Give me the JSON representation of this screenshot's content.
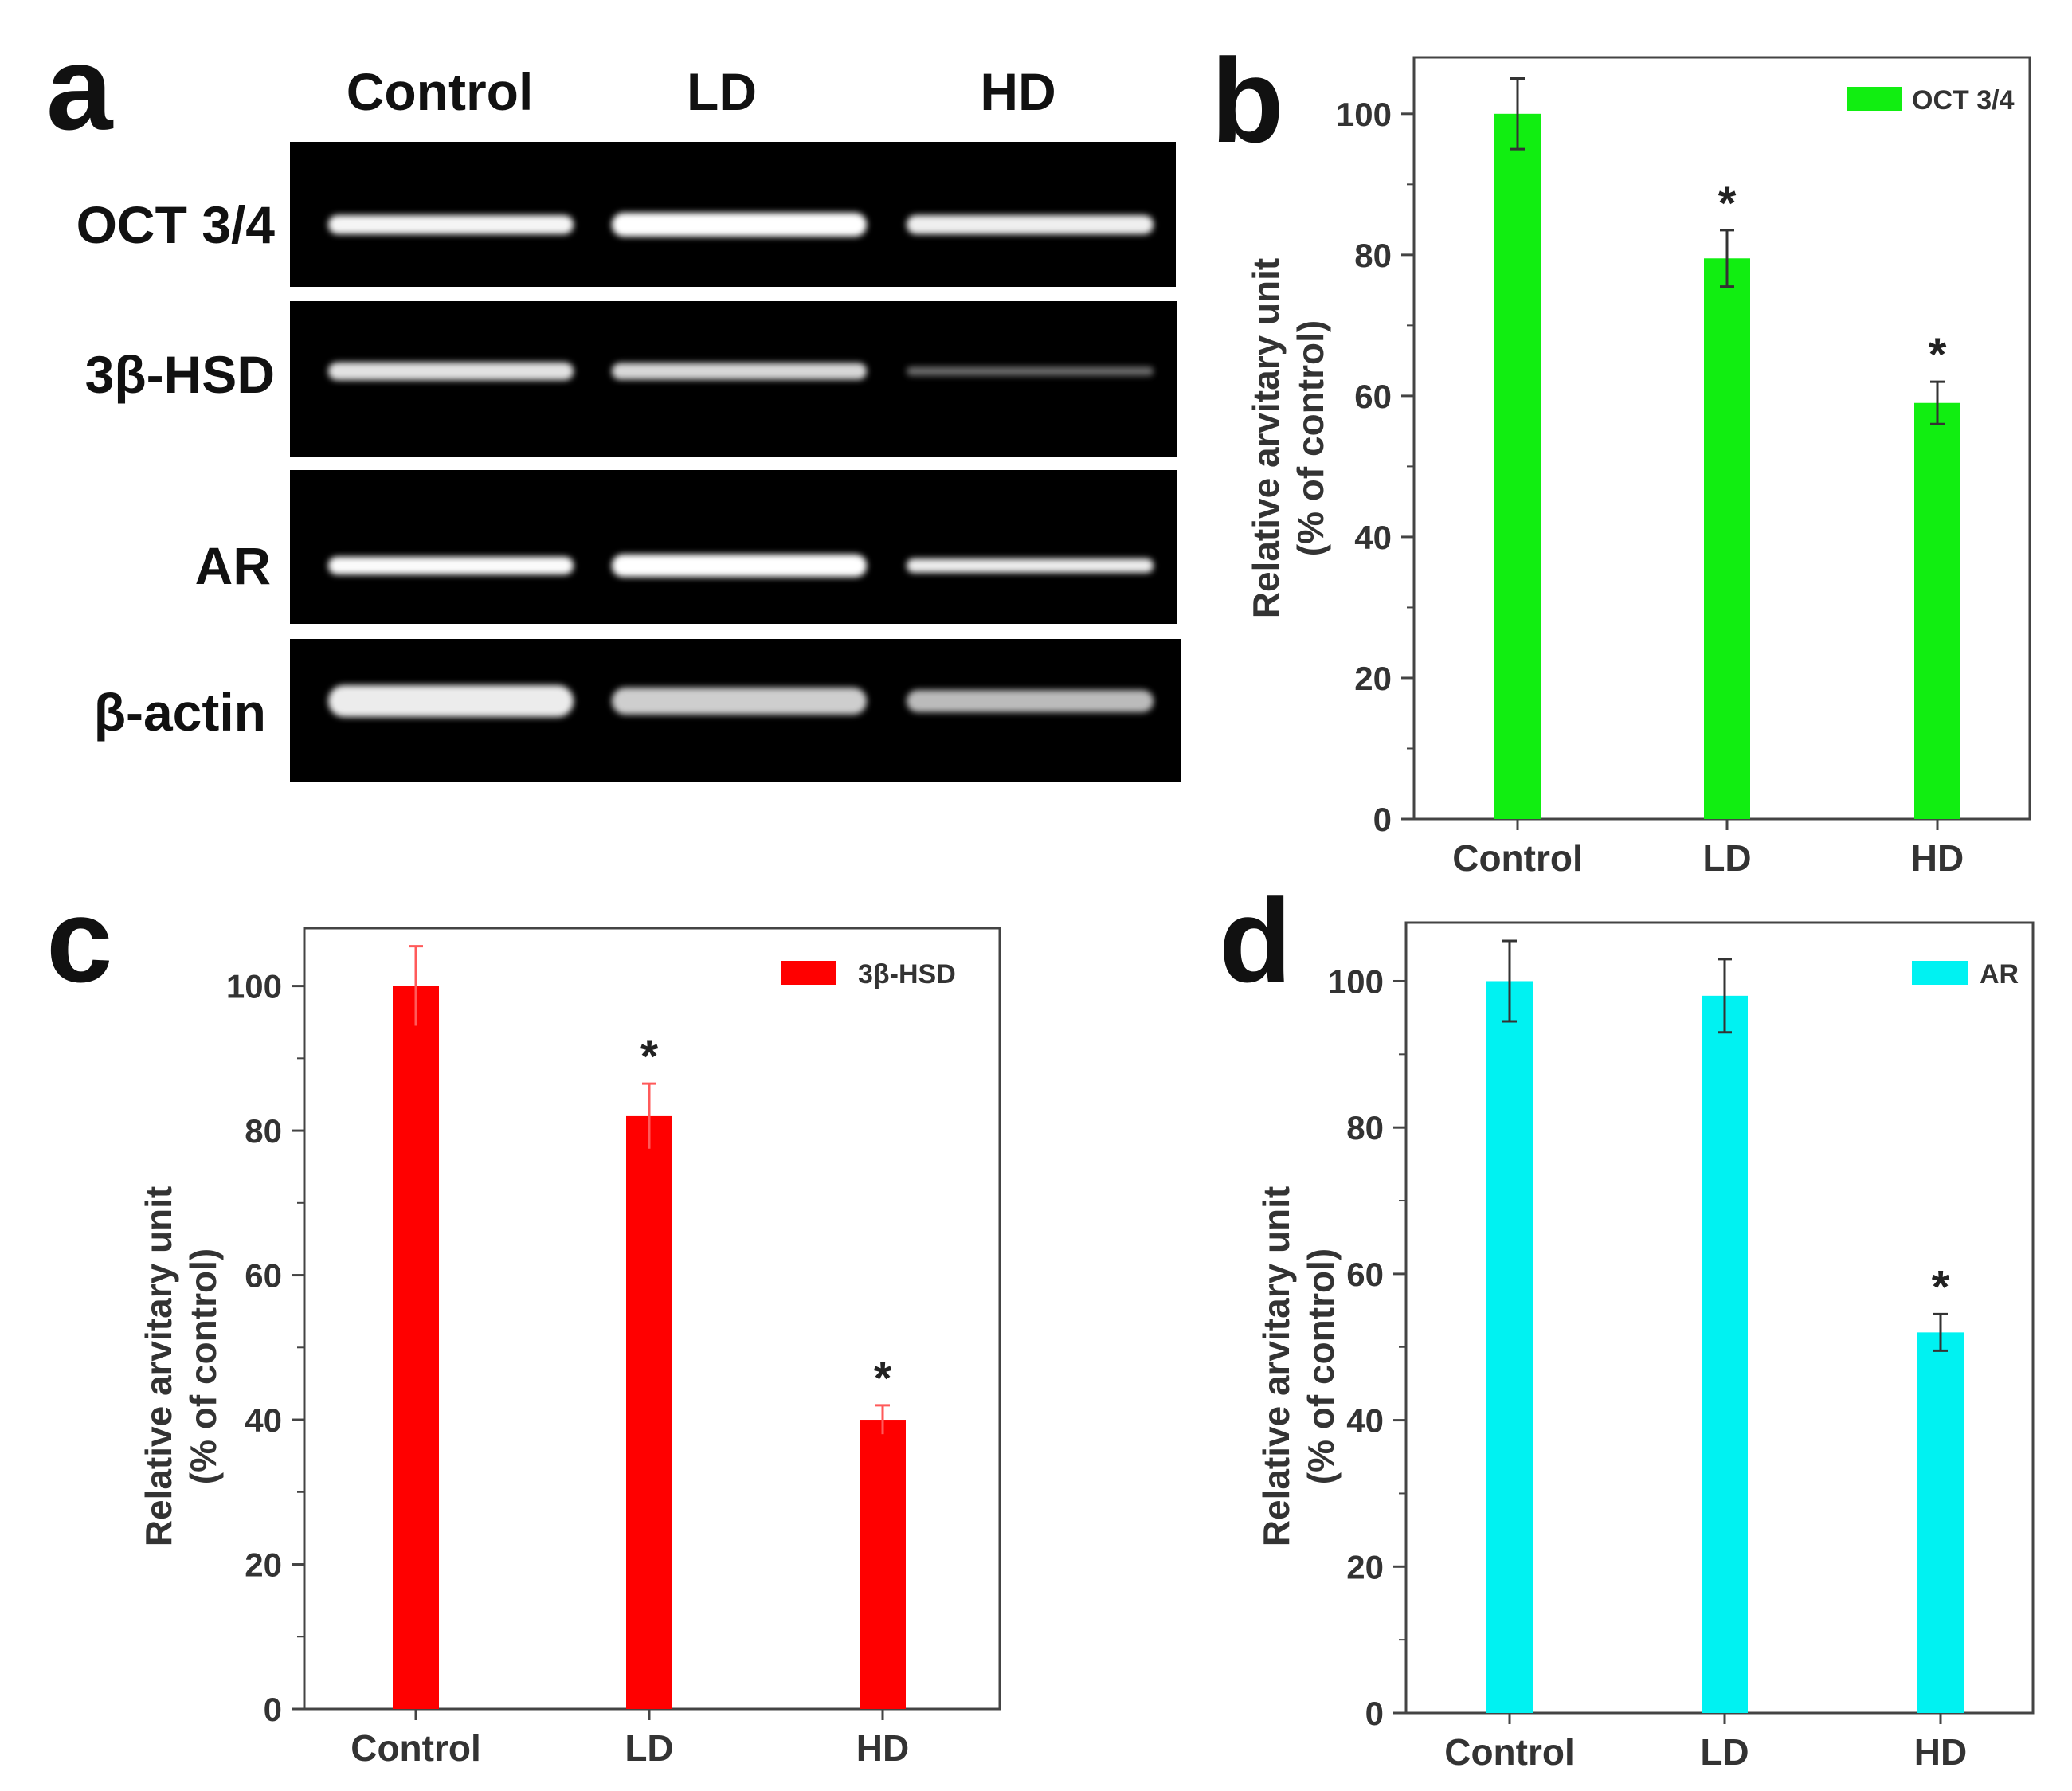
{
  "panel_letters": [
    "a",
    "b",
    "c",
    "d"
  ],
  "gel": {
    "lanes": [
      "Control",
      "LD",
      "HD"
    ],
    "rows": [
      {
        "label": "OCT 3/4",
        "band_intensity": [
          0.95,
          1.0,
          0.92
        ],
        "band_weight": [
          0.8,
          1.0,
          0.8
        ]
      },
      {
        "label": "3β-HSD",
        "band_intensity": [
          0.85,
          0.8,
          0.25
        ],
        "band_weight": [
          0.8,
          0.75,
          0.4
        ]
      },
      {
        "label": "AR",
        "band_intensity": [
          0.98,
          1.0,
          0.9
        ],
        "band_weight": [
          0.75,
          0.95,
          0.6
        ]
      },
      {
        "label": "β-actin",
        "band_intensity": [
          0.9,
          0.75,
          0.65
        ],
        "band_weight": [
          1.0,
          0.85,
          0.7
        ]
      }
    ]
  },
  "chart_data": [
    {
      "panel": "b",
      "type": "bar",
      "categories": [
        "Control",
        "LD",
        "HD"
      ],
      "series": [
        {
          "name": "OCT 3/4",
          "values": [
            100,
            79.5,
            59
          ],
          "errors": [
            5,
            4,
            3
          ],
          "color": "#11ee11"
        }
      ],
      "significance": [
        "",
        "*",
        "*"
      ],
      "ylabel": [
        "Relative arvitary unit",
        "(% of control)"
      ],
      "yticks": [
        0,
        20,
        40,
        60,
        80,
        100
      ],
      "ylim": [
        0,
        108
      ],
      "legend_position": "top-right"
    },
    {
      "panel": "c",
      "type": "bar",
      "categories": [
        "Control",
        "LD",
        "HD"
      ],
      "series": [
        {
          "name": "3β-HSD",
          "values": [
            100,
            82,
            40
          ],
          "errors": [
            5.5,
            4.5,
            2
          ],
          "color": "#ff0000"
        }
      ],
      "significance": [
        "",
        "*",
        "*"
      ],
      "ylabel": [
        "Relative arvitary unit",
        "(% of control)"
      ],
      "yticks": [
        0,
        20,
        40,
        60,
        80,
        100
      ],
      "ylim": [
        0,
        108
      ],
      "legend_position": "top-right"
    },
    {
      "panel": "d",
      "type": "bar",
      "categories": [
        "Control",
        "LD",
        "HD"
      ],
      "series": [
        {
          "name": "AR",
          "values": [
            100,
            98,
            52
          ],
          "errors": [
            5.5,
            5,
            2.5
          ],
          "color": "#00f2f2"
        }
      ],
      "significance": [
        "",
        "",
        "*"
      ],
      "ylabel": [
        "Relative arvitary unit",
        "(% of control)"
      ],
      "yticks": [
        0,
        20,
        40,
        60,
        80,
        100
      ],
      "ylim": [
        0,
        108
      ],
      "legend_position": "top-right"
    }
  ]
}
